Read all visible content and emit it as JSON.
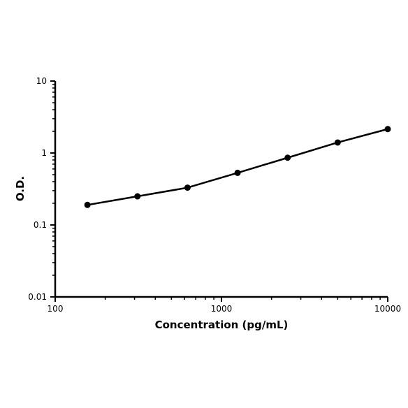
{
  "chart_data": {
    "type": "line",
    "x_label": "Concentration (pg/mL)",
    "y_label": "O.D.",
    "x": [
      156.25,
      312.5,
      625,
      1250,
      2500,
      5000,
      10000
    ],
    "series": [
      {
        "color": "#000000",
        "values": [
          0.19,
          0.25,
          0.33,
          0.53,
          0.86,
          1.4,
          2.15
        ]
      }
    ],
    "xlim": [
      100,
      10000
    ],
    "ylim": [
      0.01,
      10
    ],
    "xticks": [
      100,
      1000,
      10000
    ],
    "yticks": [
      0.01,
      0.1,
      1,
      10
    ],
    "xscale": "log",
    "yscale": "log",
    "minor_ticks": true,
    "grid": false
  }
}
